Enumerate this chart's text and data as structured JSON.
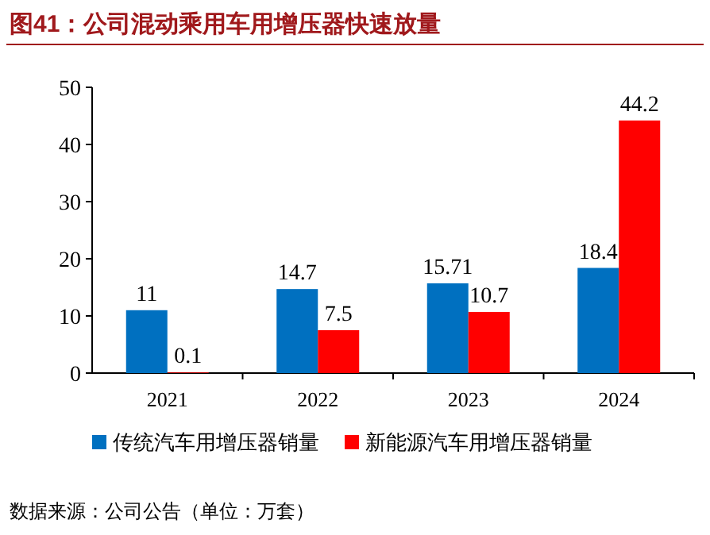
{
  "chart_data": {
    "type": "bar",
    "title": "图41：公司混动乘用车用增压器快速放量",
    "categories": [
      "2021",
      "2022",
      "2023",
      "2024"
    ],
    "series": [
      {
        "name": "传统汽车用增压器销量",
        "color": "#0070c0",
        "values": [
          11,
          14.7,
          15.71,
          18.4
        ]
      },
      {
        "name": "新能源汽车用增压器销量",
        "color": "#ff0000",
        "values": [
          0.1,
          7.5,
          10.7,
          44.2
        ]
      }
    ],
    "ylim": [
      0,
      50
    ],
    "yticks": [
      0,
      10,
      20,
      30,
      40,
      50
    ],
    "data_labels": true,
    "legend": "bottom",
    "annotations": [
      "数据来源：公司公告（单位：万套）"
    ]
  }
}
